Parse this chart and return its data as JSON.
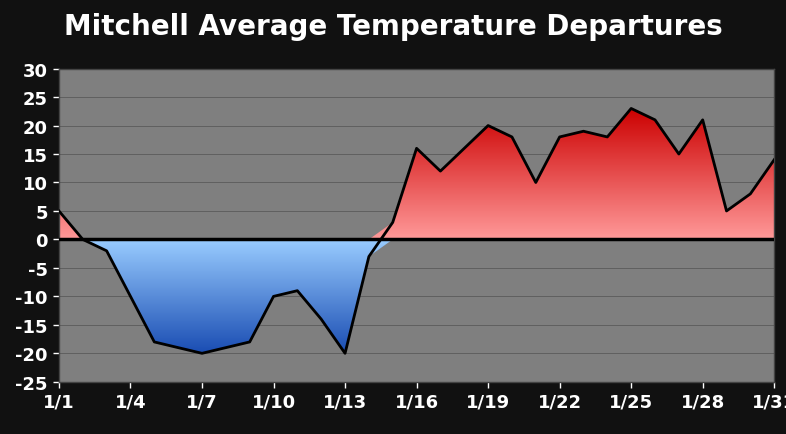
{
  "title": "Mitchell Average Temperature Departures",
  "title_fontsize": 20,
  "title_color": "white",
  "background_color": "#111111",
  "plot_bg_color": "#7f7f7f",
  "ylim": [
    -25,
    30
  ],
  "yticks": [
    -25,
    -20,
    -15,
    -10,
    -5,
    0,
    5,
    10,
    15,
    20,
    25,
    30
  ],
  "xtick_labels": [
    "1/1",
    "1/4",
    "1/7",
    "1/10",
    "1/13",
    "1/16",
    "1/19",
    "1/22",
    "1/25",
    "1/28",
    "1/31"
  ],
  "xtick_positions": [
    1,
    4,
    7,
    10,
    13,
    16,
    19,
    22,
    25,
    28,
    31
  ],
  "days": [
    1,
    2,
    3,
    4,
    5,
    6,
    7,
    8,
    9,
    10,
    11,
    12,
    13,
    14,
    15,
    16,
    17,
    18,
    19,
    20,
    21,
    22,
    23,
    24,
    25,
    26,
    27,
    28,
    29,
    30,
    31
  ],
  "values": [
    5,
    0,
    -2,
    -10,
    -18,
    -19,
    -20,
    -19,
    -18,
    -10,
    -9,
    -14,
    -20,
    -3,
    3,
    16,
    12,
    16,
    20,
    18,
    10,
    18,
    19,
    18,
    23,
    21,
    15,
    21,
    5,
    8,
    14
  ],
  "pos_color_top": "#cc0000",
  "pos_color_bottom": "#ff9999",
  "neg_color_top": "#99ccff",
  "neg_color_bottom": "#1a4db3",
  "line_color": "black",
  "zero_line_color": "black",
  "tick_color": "white",
  "tick_fontsize": 13,
  "grid_color": "#606060"
}
